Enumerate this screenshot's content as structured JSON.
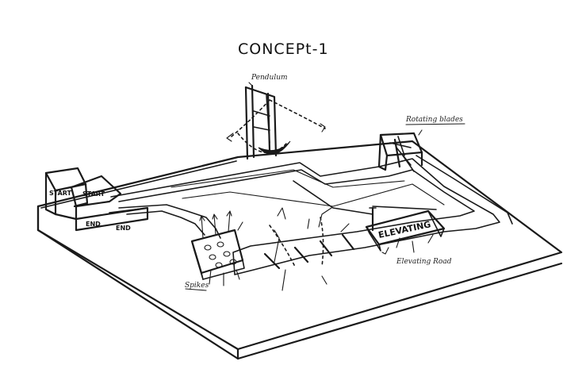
{
  "title": "CONCEPt-1",
  "labels": {
    "pendulum": "Pendulum",
    "rotating_blades": "Rotating blades",
    "start_1": "START",
    "start_2": "START",
    "end_1": "END",
    "end_2": "END",
    "elevating": "ELEVATING",
    "elevating_road": "Elevating Road",
    "spikes": "Spikes"
  }
}
